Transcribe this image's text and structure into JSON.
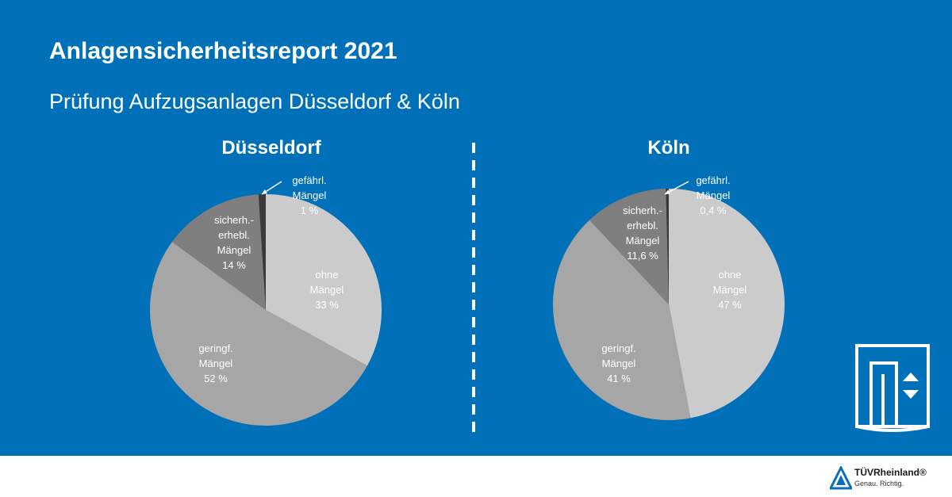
{
  "title": "Anlagensicherheitsreport 2021",
  "subtitle": "Prüfung Aufzugsanlagen Düsseldorf & Köln",
  "chart_data": [
    {
      "type": "pie",
      "title": "Düsseldorf",
      "slices": [
        {
          "label": [
            "ohne",
            "Mängel",
            "33 %"
          ],
          "value": 33,
          "color": "#cbcbcb"
        },
        {
          "label": [
            "geringf.",
            "Mängel",
            "52 %"
          ],
          "value": 52,
          "color": "#a6a6a6"
        },
        {
          "label": [
            "sicherh.-",
            "erhebl.",
            "Mängel",
            "14 %"
          ],
          "value": 14,
          "color": "#7f7f7f"
        },
        {
          "label": [
            "gefährl.",
            "Mängel",
            "1 %"
          ],
          "value": 1,
          "color": "#3a3a3a"
        }
      ]
    },
    {
      "type": "pie",
      "title": "Köln",
      "slices": [
        {
          "label": [
            "ohne",
            "Mängel",
            "47 %"
          ],
          "value": 47,
          "color": "#cbcbcb"
        },
        {
          "label": [
            "geringf.",
            "Mängel",
            "41 %"
          ],
          "value": 41,
          "color": "#a6a6a6"
        },
        {
          "label": [
            "sicherh.-",
            "erhebl.",
            "Mängel",
            "11,6 %"
          ],
          "value": 11.6,
          "color": "#7f7f7f"
        },
        {
          "label": [
            "gefährl.",
            "Mängel",
            "0,4 %"
          ],
          "value": 0.4,
          "color": "#3a3a3a"
        }
      ]
    }
  ],
  "logo": {
    "icon": "elevator-icon",
    "brand_name": "TÜVRheinland®",
    "brand_tagline": "Genau. Richtig."
  }
}
